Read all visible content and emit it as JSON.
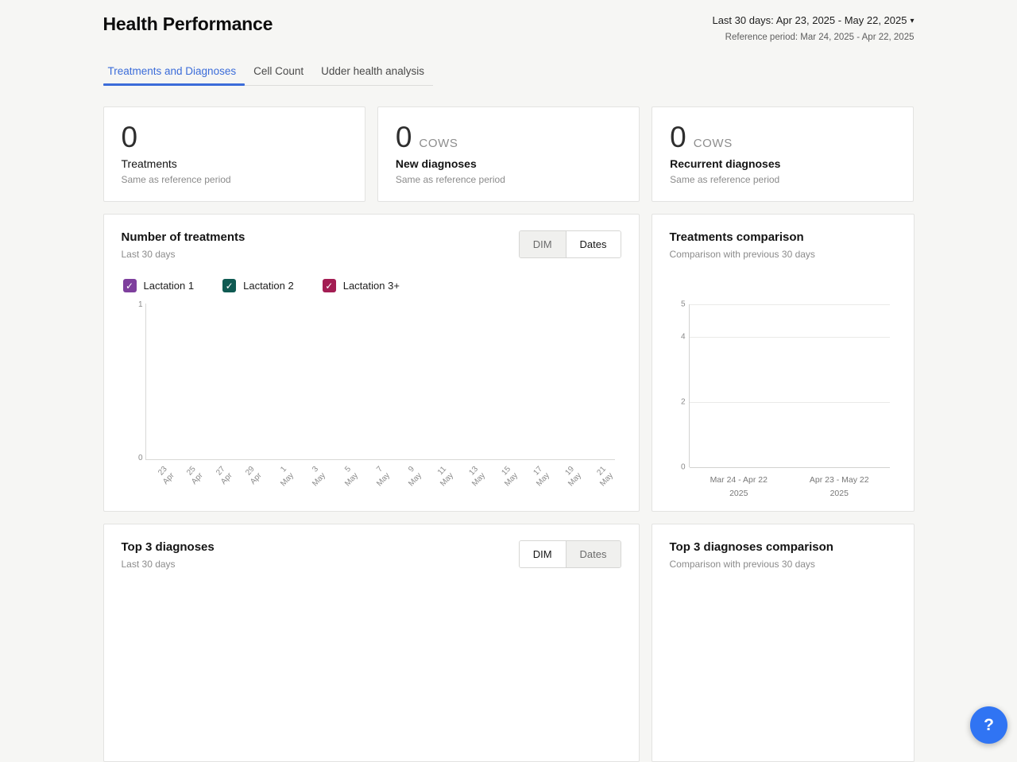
{
  "header": {
    "title": "Health Performance",
    "period_selector": "Last 30 days: Apr 23, 2025 - May 22, 2025",
    "reference_period": "Reference period: Mar 24, 2025 - Apr 22, 2025"
  },
  "icons": {
    "chevron_down": "▾",
    "check": "✓",
    "help": "?"
  },
  "colors": {
    "accent": "#3b6cd9",
    "help_button": "#3074f3"
  },
  "tabs": [
    {
      "label": "Treatments and Diagnoses",
      "active": true
    },
    {
      "label": "Cell Count",
      "active": false
    },
    {
      "label": "Udder health analysis",
      "active": false
    }
  ],
  "stat_cards": [
    {
      "value": "0",
      "unit": "",
      "label": "Treatments",
      "subtext": "Same as reference period"
    },
    {
      "value": "0",
      "unit": "COWS",
      "label": "New diagnoses",
      "subtext": "Same as reference period"
    },
    {
      "value": "0",
      "unit": "COWS",
      "label": "Recurrent diagnoses",
      "subtext": "Same as reference period"
    }
  ],
  "treatments_card": {
    "title": "Number of treatments",
    "subtitle": "Last 30 days",
    "toggle": {
      "options": [
        "DIM",
        "Dates"
      ],
      "selected": "Dates"
    },
    "legend": [
      {
        "label": "Lactation 1",
        "color": "#7e3f9d",
        "checked": true
      },
      {
        "label": "Lactation 2",
        "color": "#0f5a52",
        "checked": true
      },
      {
        "label": "Lactation 3+",
        "color": "#a31d53",
        "checked": true
      }
    ]
  },
  "comparison_card": {
    "title": "Treatments comparison",
    "subtitle": "Comparison with previous 30 days"
  },
  "top3_card": {
    "title": "Top 3 diagnoses",
    "subtitle": "Last 30 days",
    "toggle": {
      "options": [
        "DIM",
        "Dates"
      ],
      "selected": "DIM"
    }
  },
  "top3_comparison_card": {
    "title": "Top 3 diagnoses comparison",
    "subtitle": "Comparison with previous 30 days"
  },
  "chart_data": [
    {
      "type": "line",
      "title": "Number of treatments",
      "x": [
        "23\nApr",
        "25\nApr",
        "27\nApr",
        "29\nApr",
        "1\nMay",
        "3\nMay",
        "5\nMay",
        "7\nMay",
        "9\nMay",
        "11\nMay",
        "13\nMay",
        "15\nMay",
        "17\nMay",
        "19\nMay",
        "21\nMay"
      ],
      "yticks": [
        "1",
        "0"
      ],
      "ylim": [
        0,
        1
      ],
      "series": [
        {
          "name": "Lactation 1",
          "values": []
        },
        {
          "name": "Lactation 2",
          "values": []
        },
        {
          "name": "Lactation 3+",
          "values": []
        }
      ]
    },
    {
      "type": "bar",
      "title": "Treatments comparison",
      "categories": [
        "Mar 24 - Apr 22\n2025",
        "Apr 23 - May 22\n2025"
      ],
      "values": [
        0,
        0
      ],
      "yticks": [
        "5",
        "4",
        "2",
        "0"
      ],
      "ylim": [
        0,
        5
      ]
    }
  ],
  "help_button": {
    "label": "?"
  }
}
